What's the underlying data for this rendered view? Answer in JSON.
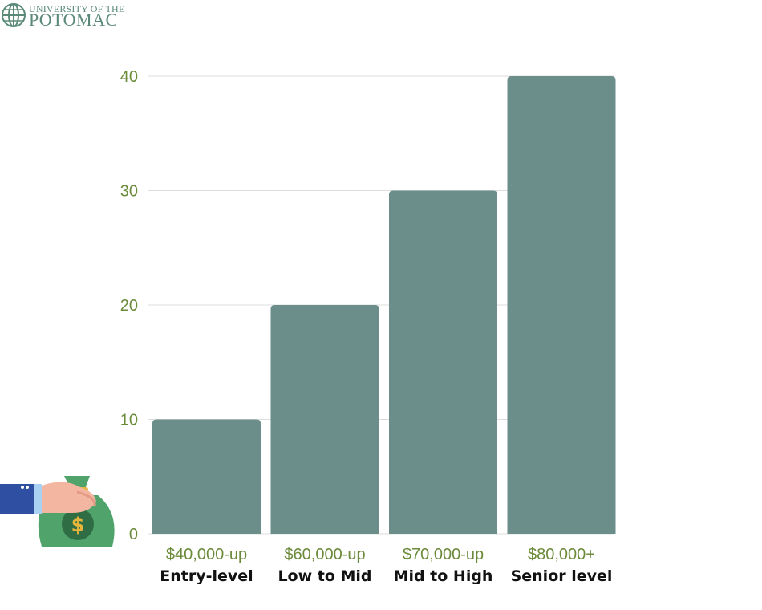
{
  "logo": {
    "line1": "UNIVERSITY OF THE",
    "line2": "POTOMAC"
  },
  "colors": {
    "bar": "#6b8e8a",
    "tick_label": "#6b8b3a",
    "category_label": "#111111",
    "grid": "#dddddd"
  },
  "chart_data": {
    "type": "bar",
    "categories": [
      "$40,000-up",
      "$60,000-up",
      "$70,000-up",
      "$80,000+"
    ],
    "category_sublabels": [
      "Entry-level",
      "Low to Mid",
      "Mid to High",
      "Senior level"
    ],
    "values": [
      10,
      20,
      30,
      40
    ],
    "yticks": [
      0,
      10,
      20,
      30,
      40
    ],
    "ylim": [
      0,
      40
    ],
    "grid": true
  },
  "illustration": {
    "icon": "hand-holding-money-bag-icon",
    "symbol": "$"
  }
}
